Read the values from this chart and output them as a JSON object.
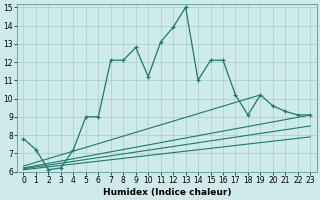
{
  "xlabel": "Humidex (Indice chaleur)",
  "xlim": [
    -0.5,
    23.5
  ],
  "ylim": [
    6,
    15.2
  ],
  "yticks": [
    6,
    7,
    8,
    9,
    10,
    11,
    12,
    13,
    14,
    15
  ],
  "xticks": [
    0,
    1,
    2,
    3,
    4,
    5,
    6,
    7,
    8,
    9,
    10,
    11,
    12,
    13,
    14,
    15,
    16,
    17,
    18,
    19,
    20,
    21,
    22,
    23
  ],
  "bg_color": "#ceeaea",
  "line_color": "#1a7a6e",
  "grid_color": "#a8cccc",
  "series_main": {
    "x": [
      0,
      1,
      2,
      3,
      4,
      5,
      6,
      7,
      8,
      9,
      10,
      11,
      12,
      13,
      14,
      15,
      16,
      17,
      18,
      19,
      20,
      21,
      22,
      23
    ],
    "y": [
      7.8,
      7.2,
      6.1,
      6.2,
      7.2,
      9.0,
      9.0,
      12.1,
      12.1,
      12.8,
      11.2,
      13.1,
      13.9,
      15.0,
      11.0,
      12.1,
      12.1,
      10.2,
      9.1,
      10.2,
      9.6,
      9.3,
      9.1,
      9.1
    ]
  },
  "series_lines": [
    {
      "x": [
        0,
        19
      ],
      "y": [
        6.3,
        10.2
      ]
    },
    {
      "x": [
        0,
        23
      ],
      "y": [
        6.2,
        9.1
      ]
    },
    {
      "x": [
        0,
        23
      ],
      "y": [
        6.15,
        8.5
      ]
    },
    {
      "x": [
        0,
        23
      ],
      "y": [
        6.1,
        7.9
      ]
    }
  ]
}
